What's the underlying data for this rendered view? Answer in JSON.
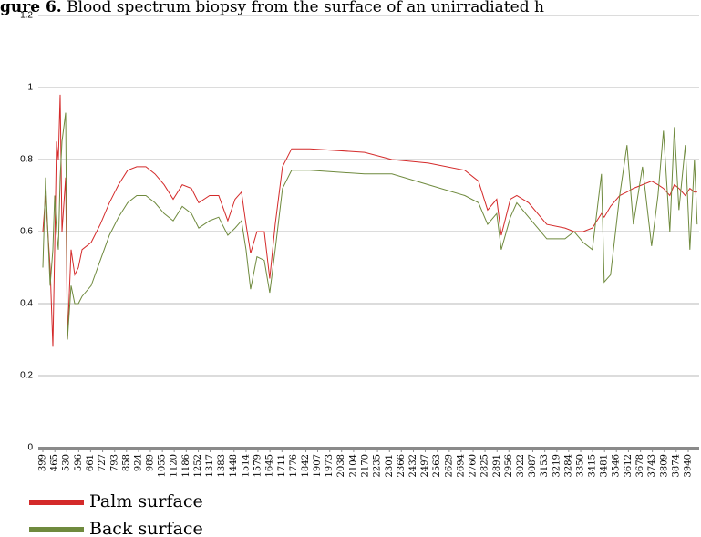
{
  "chart_data": {
    "type": "line",
    "title_label": "gure 6.",
    "title": "Blood spectrum biopsy from the surface of an unirradiated h",
    "x": [
      399,
      414,
      439,
      454,
      464,
      474,
      484,
      494,
      504,
      524,
      534,
      554,
      574,
      594,
      614,
      664,
      714,
      764,
      814,
      864,
      914,
      964,
      1014,
      1064,
      1114,
      1164,
      1214,
      1254,
      1314,
      1364,
      1414,
      1454,
      1489,
      1514,
      1539,
      1574,
      1614,
      1644,
      1674,
      1714,
      1764,
      1864,
      2164,
      2314,
      2514,
      2714,
      2789,
      2839,
      2889,
      2914,
      2964,
      2999,
      3064,
      3164,
      3264,
      3314,
      3364,
      3414,
      3464,
      3479,
      3514,
      3564,
      3604,
      3639,
      3689,
      3739,
      3774,
      3804,
      3839,
      3864,
      3889,
      3924,
      3949,
      3974,
      3989
    ],
    "series": [
      {
        "name": "Palm surface",
        "color": "#d42a2a",
        "values": [
          0.6,
          0.7,
          0.5,
          0.28,
          0.55,
          0.85,
          0.8,
          0.98,
          0.6,
          0.75,
          0.3,
          0.55,
          0.48,
          0.5,
          0.55,
          0.57,
          0.62,
          0.68,
          0.73,
          0.77,
          0.78,
          0.78,
          0.76,
          0.73,
          0.69,
          0.73,
          0.72,
          0.68,
          0.7,
          0.7,
          0.63,
          0.69,
          0.71,
          0.62,
          0.54,
          0.6,
          0.6,
          0.47,
          0.62,
          0.78,
          0.83,
          0.83,
          0.82,
          0.8,
          0.79,
          0.77,
          0.74,
          0.66,
          0.69,
          0.59,
          0.69,
          0.7,
          0.68,
          0.62,
          0.61,
          0.6,
          0.6,
          0.61,
          0.65,
          0.64,
          0.67,
          0.7,
          0.71,
          0.72,
          0.73,
          0.74,
          0.73,
          0.72,
          0.7,
          0.73,
          0.72,
          0.7,
          0.72,
          0.71,
          0.71
        ]
      },
      {
        "name": "Back surface",
        "color": "#6f8a3e",
        "values": [
          0.5,
          0.75,
          0.45,
          0.55,
          0.7,
          0.6,
          0.55,
          0.75,
          0.85,
          0.93,
          0.3,
          0.45,
          0.4,
          0.4,
          0.42,
          0.45,
          0.52,
          0.59,
          0.64,
          0.68,
          0.7,
          0.7,
          0.68,
          0.65,
          0.63,
          0.67,
          0.65,
          0.61,
          0.63,
          0.64,
          0.59,
          0.61,
          0.63,
          0.55,
          0.44,
          0.53,
          0.52,
          0.43,
          0.55,
          0.72,
          0.77,
          0.77,
          0.76,
          0.76,
          0.73,
          0.7,
          0.68,
          0.62,
          0.65,
          0.55,
          0.64,
          0.68,
          0.64,
          0.58,
          0.58,
          0.6,
          0.57,
          0.55,
          0.76,
          0.46,
          0.48,
          0.7,
          0.84,
          0.62,
          0.78,
          0.56,
          0.7,
          0.88,
          0.6,
          0.89,
          0.66,
          0.84,
          0.55,
          0.8,
          0.62
        ]
      }
    ],
    "xlim": [
      399,
      4000
    ],
    "xticks": [
      399,
      465,
      530,
      596,
      661,
      727,
      793,
      858,
      924,
      989,
      1055,
      1120,
      1186,
      1252,
      1317,
      1383,
      1448,
      1514,
      1579,
      1645,
      1711,
      1776,
      1842,
      1907,
      1973,
      2038,
      2104,
      2170,
      2235,
      2301,
      2366,
      2432,
      2497,
      2563,
      2629,
      2694,
      2760,
      2825,
      2891,
      2956,
      3022,
      3087,
      3153,
      3219,
      3284,
      3350,
      3415,
      3481,
      3546,
      3612,
      3678,
      3743,
      3809,
      3874,
      3940
    ],
    "ylim": [
      0,
      1.2
    ],
    "yticks": [
      0,
      0.2,
      0.4,
      0.6,
      0.8,
      1,
      1.2
    ],
    "grid": true,
    "legend": "bottom-left"
  }
}
